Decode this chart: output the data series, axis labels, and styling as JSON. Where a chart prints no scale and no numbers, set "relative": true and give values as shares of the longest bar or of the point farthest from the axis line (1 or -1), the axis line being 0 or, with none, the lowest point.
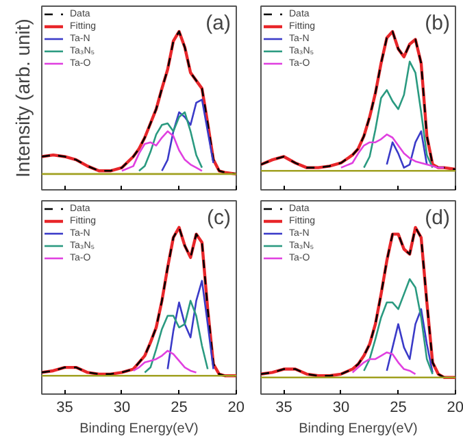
{
  "chart_data": [
    {
      "type": "line",
      "title": "(a)",
      "ylabel": "Intensity (arb. unit)",
      "relative": true,
      "xlim": [
        37,
        20
      ],
      "xticks": [
        35,
        30,
        25,
        20
      ],
      "tick_labels": false,
      "grid": false,
      "legend": "top left",
      "marker": "none",
      "x": [
        37,
        36,
        35,
        34,
        33,
        32,
        31,
        30,
        29,
        28.5,
        28,
        27.5,
        27,
        26.5,
        26,
        25.5,
        25,
        24.5,
        24,
        23.5,
        23,
        22.5,
        22,
        21.5,
        21,
        20
      ],
      "series": [
        {
          "name": "Fitting",
          "color": "#e8262a",
          "values": [
            0.21,
            0.22,
            0.21,
            0.19,
            0.15,
            0.12,
            0.12,
            0.14,
            0.21,
            0.26,
            0.33,
            0.42,
            0.51,
            0.64,
            0.76,
            0.94,
            1.0,
            0.9,
            0.74,
            0.69,
            0.64,
            0.42,
            0.19,
            0.12,
            0.11,
            0.1
          ]
        },
        {
          "name": "Data",
          "color": "#000000",
          "line_style": "dashed",
          "values": [
            0.21,
            0.22,
            0.21,
            0.19,
            0.15,
            0.12,
            0.12,
            0.14,
            0.21,
            0.26,
            0.33,
            0.42,
            0.51,
            0.64,
            0.76,
            0.94,
            1.0,
            0.9,
            0.74,
            0.69,
            0.64,
            0.42,
            0.19,
            0.12,
            0.11,
            0.1
          ]
        },
        {
          "name": "Ta-N",
          "color": "#3a3ac8",
          "values": [
            null,
            null,
            null,
            null,
            null,
            null,
            null,
            null,
            null,
            null,
            null,
            null,
            null,
            0.12,
            0.19,
            0.37,
            0.49,
            0.46,
            0.41,
            0.55,
            0.57,
            0.37,
            0.17,
            null,
            null,
            null
          ]
        },
        {
          "name": "Ta₃N₅",
          "color": "#2a9a80",
          "values": [
            null,
            null,
            null,
            null,
            null,
            null,
            null,
            null,
            null,
            0.12,
            0.15,
            0.24,
            0.35,
            0.41,
            0.42,
            0.37,
            0.46,
            0.49,
            0.37,
            0.22,
            0.14,
            null,
            null,
            null,
            null,
            null
          ]
        },
        {
          "name": "Ta-O",
          "color": "#e040e0",
          "values": [
            null,
            null,
            null,
            null,
            null,
            null,
            null,
            0.12,
            0.15,
            0.23,
            0.29,
            0.3,
            0.28,
            0.33,
            0.37,
            0.34,
            0.25,
            0.19,
            0.16,
            0.14,
            0.12,
            null,
            null,
            null,
            null,
            null
          ]
        },
        {
          "color": "#a0a020",
          "values": [
            0.1,
            0.1,
            0.1,
            0.1,
            0.1,
            0.1,
            0.1,
            0.1,
            0.1,
            0.1,
            0.1,
            0.1,
            0.1,
            0.1,
            0.1,
            0.1,
            0.1,
            0.1,
            0.1,
            0.1,
            0.1,
            0.1,
            0.1,
            0.1,
            0.1,
            0.1
          ]
        }
      ]
    },
    {
      "type": "line",
      "title": "(b)",
      "relative": true,
      "xlim": [
        37,
        20
      ],
      "xticks": [
        35,
        30,
        25,
        20
      ],
      "tick_labels": false,
      "grid": false,
      "legend": "top left",
      "marker": "none",
      "x": [
        37,
        36,
        35,
        34,
        33,
        32,
        31,
        30,
        29,
        28.5,
        28,
        27.5,
        27,
        26.5,
        26,
        25.5,
        25,
        24.5,
        24,
        23.5,
        23,
        22.5,
        22,
        21.5,
        21,
        20
      ],
      "series": [
        {
          "name": "Fitting",
          "color": "#e8262a",
          "values": [
            0.16,
            0.19,
            0.21,
            0.17,
            0.14,
            0.14,
            0.15,
            0.17,
            0.22,
            0.26,
            0.34,
            0.46,
            0.61,
            0.8,
            0.96,
            1.0,
            0.89,
            0.84,
            0.92,
            0.95,
            0.8,
            0.34,
            0.16,
            0.14,
            0.14,
            0.13
          ]
        },
        {
          "name": "Data",
          "color": "#000000",
          "line_style": "dashed",
          "values": [
            0.16,
            0.19,
            0.21,
            0.17,
            0.14,
            0.14,
            0.15,
            0.17,
            0.22,
            0.26,
            0.34,
            0.46,
            0.61,
            0.8,
            0.96,
            1.0,
            0.89,
            0.84,
            0.92,
            0.95,
            0.8,
            0.34,
            0.16,
            0.14,
            0.14,
            0.13
          ]
        },
        {
          "name": "Ta-N",
          "color": "#3a3ac8",
          "values": [
            null,
            null,
            null,
            null,
            null,
            null,
            null,
            null,
            null,
            null,
            null,
            null,
            null,
            null,
            0.16,
            0.3,
            0.23,
            0.14,
            0.16,
            0.3,
            0.37,
            0.16,
            null,
            null,
            null,
            null
          ]
        },
        {
          "name": "Ta₃N₅",
          "color": "#2a9a80",
          "values": [
            null,
            null,
            null,
            null,
            null,
            null,
            null,
            null,
            null,
            null,
            0.14,
            0.21,
            0.38,
            0.58,
            0.63,
            0.56,
            0.51,
            0.6,
            0.81,
            0.74,
            0.49,
            0.22,
            0.14,
            null,
            null,
            null
          ]
        },
        {
          "name": "Ta-O",
          "color": "#e040e0",
          "values": [
            null,
            null,
            null,
            null,
            null,
            null,
            null,
            0.14,
            0.17,
            0.23,
            0.28,
            0.3,
            0.3,
            0.32,
            0.35,
            0.33,
            0.28,
            0.23,
            0.2,
            0.18,
            0.17,
            0.16,
            0.15,
            0.14,
            0.14,
            null
          ]
        },
        {
          "color": "#a0a020",
          "values": [
            0.12,
            0.12,
            0.12,
            0.12,
            0.12,
            0.12,
            0.12,
            0.12,
            0.12,
            0.12,
            0.12,
            0.12,
            0.12,
            0.12,
            0.12,
            0.12,
            0.12,
            0.12,
            0.12,
            0.12,
            0.12,
            0.12,
            0.12,
            0.12,
            0.12,
            0.12
          ]
        }
      ]
    },
    {
      "type": "line",
      "title": "(c)",
      "xlabel": "Binding Energy(eV)",
      "relative": true,
      "xlim": [
        37,
        20
      ],
      "xticks": [
        35,
        30,
        25,
        20
      ],
      "tick_labels": "x",
      "grid": false,
      "legend": "top left",
      "marker": "none",
      "x": [
        37,
        36,
        35,
        34,
        33,
        32,
        31,
        30,
        29,
        28.5,
        28,
        27.5,
        27,
        26.5,
        26,
        25.5,
        25,
        24.5,
        24,
        23.5,
        23,
        22.5,
        22,
        21.5,
        21,
        20
      ],
      "series": [
        {
          "name": "Fitting",
          "color": "#e8262a",
          "values": [
            0.13,
            0.14,
            0.16,
            0.16,
            0.13,
            0.12,
            0.12,
            0.13,
            0.15,
            0.19,
            0.23,
            0.31,
            0.4,
            0.56,
            0.76,
            0.94,
            1.0,
            0.89,
            0.82,
            0.96,
            0.91,
            0.51,
            0.18,
            0.12,
            0.11,
            0.11
          ]
        },
        {
          "name": "Data",
          "color": "#000000",
          "line_style": "dashed",
          "values": [
            0.13,
            0.14,
            0.16,
            0.16,
            0.13,
            0.12,
            0.12,
            0.13,
            0.15,
            0.19,
            0.23,
            0.31,
            0.4,
            0.56,
            0.76,
            0.94,
            1.0,
            0.89,
            0.82,
            0.96,
            0.91,
            0.51,
            0.18,
            0.12,
            0.11,
            0.11
          ]
        },
        {
          "name": "Ta-N",
          "color": "#3a3ac8",
          "values": [
            null,
            null,
            null,
            null,
            null,
            null,
            null,
            null,
            null,
            null,
            null,
            null,
            null,
            null,
            0.15,
            0.38,
            0.55,
            0.42,
            0.34,
            0.56,
            0.68,
            0.42,
            0.15,
            null,
            null,
            null
          ]
        },
        {
          "name": "Ta₃N₅",
          "color": "#2a9a80",
          "values": [
            null,
            null,
            null,
            null,
            null,
            null,
            null,
            null,
            null,
            null,
            0.13,
            0.16,
            0.27,
            0.39,
            0.47,
            0.47,
            0.4,
            0.42,
            0.56,
            0.47,
            0.29,
            0.15,
            null,
            null,
            null,
            null
          ]
        },
        {
          "name": "Ta-O",
          "color": "#e040e0",
          "values": [
            null,
            null,
            null,
            null,
            null,
            null,
            null,
            null,
            0.14,
            0.16,
            0.19,
            0.2,
            0.21,
            0.23,
            0.26,
            0.24,
            0.2,
            0.16,
            0.14,
            0.13,
            null,
            null,
            null,
            null,
            null,
            null
          ]
        },
        {
          "color": "#a0a020",
          "values": [
            0.11,
            0.11,
            0.11,
            0.11,
            0.11,
            0.11,
            0.11,
            0.11,
            0.11,
            0.11,
            0.11,
            0.11,
            0.11,
            0.11,
            0.11,
            0.11,
            0.11,
            0.11,
            0.11,
            0.11,
            0.11,
            0.11,
            0.11,
            0.11,
            0.11,
            0.11
          ]
        }
      ]
    },
    {
      "type": "line",
      "title": "(d)",
      "xlabel": "Binding Energy(eV)",
      "relative": true,
      "xlim": [
        37,
        20
      ],
      "xticks": [
        35,
        30,
        25,
        20
      ],
      "tick_labels": "x",
      "grid": false,
      "legend": "top left",
      "marker": "none",
      "x": [
        37,
        36,
        35,
        34,
        33,
        32,
        31,
        30,
        29,
        28.5,
        28,
        27.5,
        27,
        26.5,
        26,
        25.5,
        25,
        24.5,
        24,
        23.5,
        23,
        22.5,
        22,
        21.5,
        21,
        20
      ],
      "series": [
        {
          "name": "Fitting",
          "color": "#e8262a",
          "values": [
            0.12,
            0.13,
            0.15,
            0.15,
            0.12,
            0.11,
            0.11,
            0.12,
            0.15,
            0.18,
            0.23,
            0.3,
            0.42,
            0.6,
            0.8,
            0.96,
            0.96,
            0.87,
            0.84,
            1.0,
            0.94,
            0.55,
            0.19,
            0.12,
            0.1,
            0.1
          ]
        },
        {
          "name": "Data",
          "color": "#000000",
          "line_style": "dashed",
          "values": [
            0.12,
            0.13,
            0.15,
            0.15,
            0.12,
            0.11,
            0.11,
            0.12,
            0.15,
            0.18,
            0.23,
            0.3,
            0.42,
            0.6,
            0.8,
            0.96,
            0.96,
            0.87,
            0.84,
            1.0,
            0.94,
            0.55,
            0.19,
            0.12,
            0.1,
            0.1
          ]
        },
        {
          "name": "Ta-N",
          "color": "#3a3ac8",
          "values": [
            null,
            null,
            null,
            null,
            null,
            null,
            null,
            null,
            null,
            null,
            null,
            null,
            null,
            null,
            0.14,
            0.28,
            0.42,
            0.28,
            0.21,
            0.42,
            0.51,
            0.3,
            0.13,
            null,
            null,
            null
          ]
        },
        {
          "name": "Ta₃N₅",
          "color": "#2a9a80",
          "values": [
            null,
            null,
            null,
            null,
            null,
            null,
            null,
            null,
            null,
            null,
            0.14,
            0.21,
            0.33,
            0.46,
            0.55,
            0.55,
            0.51,
            0.6,
            0.69,
            0.64,
            0.46,
            0.21,
            0.12,
            null,
            null,
            null
          ]
        },
        {
          "name": "Ta-O",
          "color": "#e040e0",
          "values": [
            null,
            null,
            null,
            null,
            null,
            null,
            null,
            null,
            0.13,
            0.16,
            0.19,
            0.21,
            0.21,
            0.23,
            0.25,
            0.24,
            0.19,
            0.15,
            0.14,
            0.12,
            null,
            null,
            null,
            null,
            null,
            null
          ]
        },
        {
          "color": "#a0a020",
          "values": [
            0.1,
            0.1,
            0.1,
            0.1,
            0.1,
            0.1,
            0.1,
            0.1,
            0.1,
            0.1,
            0.1,
            0.1,
            0.1,
            0.1,
            0.1,
            0.1,
            0.1,
            0.1,
            0.1,
            0.1,
            0.1,
            0.1,
            0.1,
            0.1,
            0.1,
            0.1
          ]
        }
      ]
    }
  ]
}
